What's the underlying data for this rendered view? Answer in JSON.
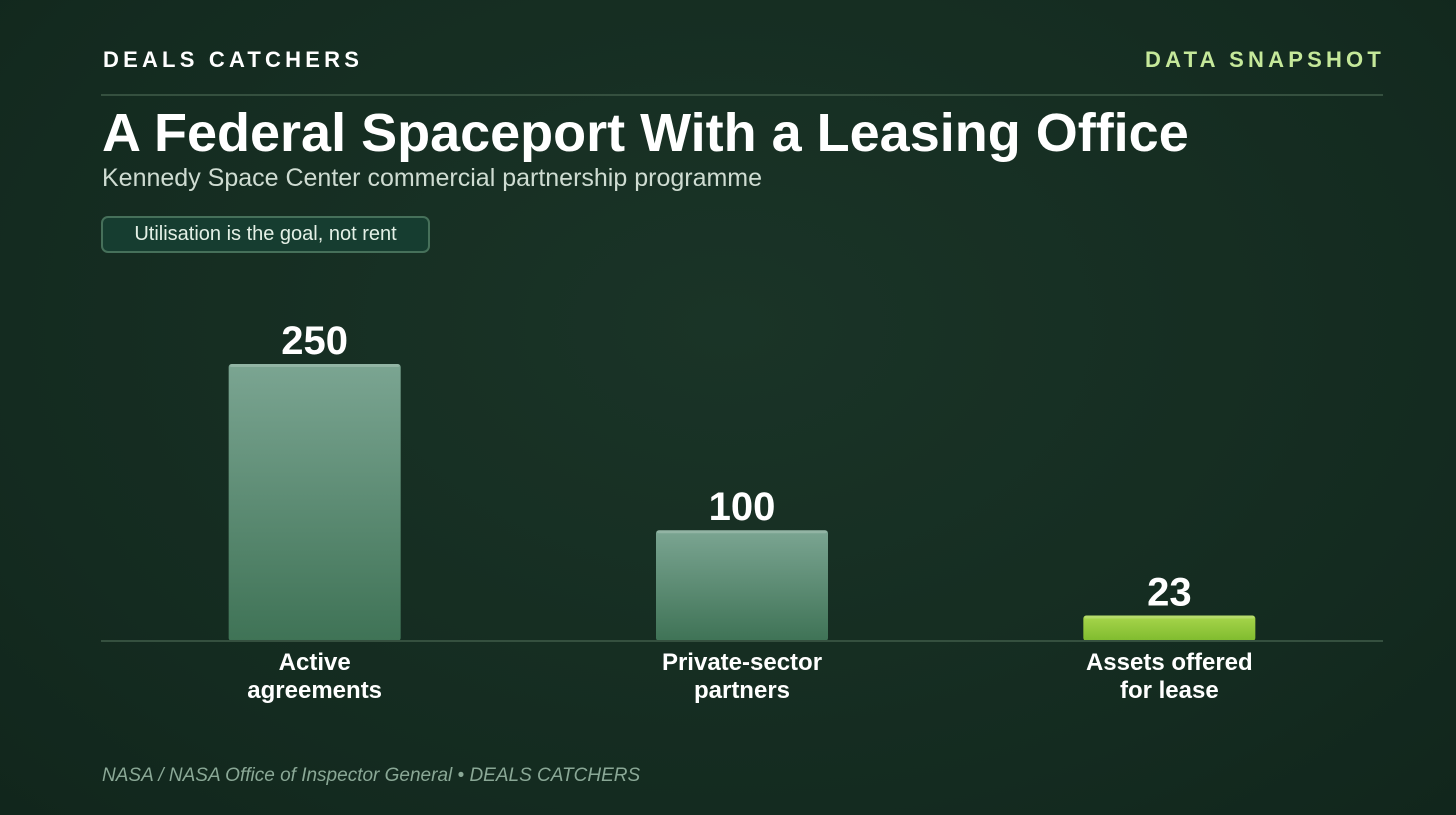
{
  "header": {
    "brand": "DEALS CATCHERS",
    "tag": "DATA SNAPSHOT"
  },
  "title": "A Federal Spaceport With a Leasing Office",
  "subtitle": "Kennedy Space Center commercial partnership programme",
  "badge": "Utilisation is the goal, not rent",
  "source": "NASA / NASA Office of Inspector General • DEALS CATCHERS",
  "colors": {
    "accent": "#c5e89a",
    "bar_default_top": "#7ba592",
    "bar_default_bottom": "#3f7356",
    "bar_highlight_top": "#a8d64c",
    "bar_highlight_bottom": "#7fbb2e"
  },
  "chart_data": {
    "type": "bar",
    "categories": [
      [
        "Active",
        "agreements"
      ],
      [
        "Private-sector",
        "partners"
      ],
      [
        "Assets offered",
        "for lease"
      ]
    ],
    "values": [
      250,
      100,
      23
    ],
    "highlight": [
      false,
      false,
      true
    ],
    "ylim": [
      0,
      250
    ],
    "grid": false,
    "legend": "none"
  }
}
